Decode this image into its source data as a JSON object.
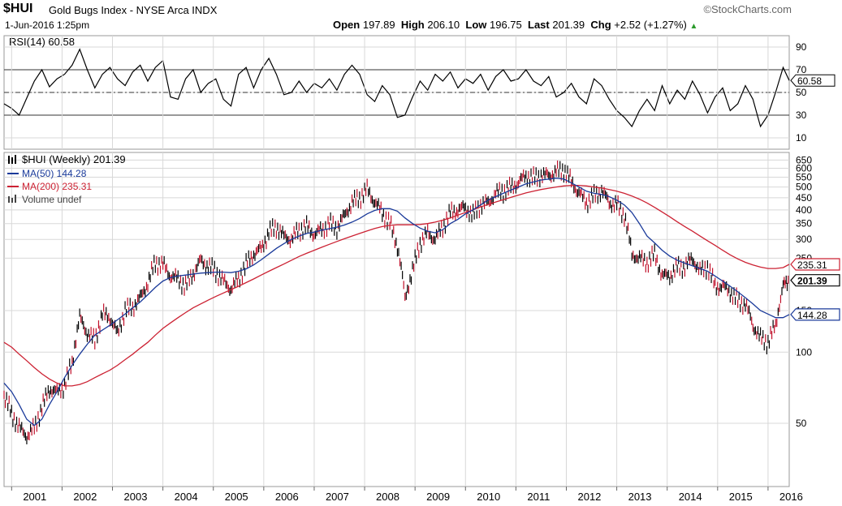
{
  "header": {
    "symbol": "$HUI",
    "name": "Gold Bugs Index - NYSE Arca INDX",
    "brand": "©StockCharts.com",
    "date": "1-Jun-2016 1:25pm",
    "open_label": "Open",
    "open": "197.89",
    "high_label": "High",
    "high": "206.10",
    "low_label": "Low",
    "low": "196.75",
    "last_label": "Last",
    "last": "201.39",
    "chg_label": "Chg",
    "chg": "+2.52 (+1.27%)"
  },
  "colors": {
    "price": "#000000",
    "down": "#c0102a",
    "ma50": "#1a3a9a",
    "ma200": "#cc2233",
    "rsi": "#000000",
    "grid": "#d8d8d8",
    "overbought": "#3a7a3a",
    "oversold": "#a04040"
  },
  "chart_data": [
    {
      "type": "line",
      "panel": "RSI",
      "legend": "RSI(14) 60.58",
      "ylim": [
        0,
        100
      ],
      "y_ticks": [
        10,
        30,
        50,
        70,
        90
      ],
      "reference_lines": [
        30,
        50,
        70
      ],
      "last_value": "60.58",
      "x": [
        2000.85,
        2001.0,
        2001.15,
        2001.3,
        2001.45,
        2001.6,
        2001.75,
        2001.9,
        2002.05,
        2002.2,
        2002.35,
        2002.5,
        2002.65,
        2002.8,
        2002.95,
        2003.1,
        2003.25,
        2003.4,
        2003.55,
        2003.7,
        2003.85,
        2004.0,
        2004.15,
        2004.3,
        2004.45,
        2004.6,
        2004.75,
        2004.9,
        2005.05,
        2005.2,
        2005.35,
        2005.5,
        2005.65,
        2005.8,
        2005.95,
        2006.1,
        2006.25,
        2006.4,
        2006.55,
        2006.7,
        2006.85,
        2007.0,
        2007.15,
        2007.3,
        2007.45,
        2007.6,
        2007.75,
        2007.9,
        2008.05,
        2008.2,
        2008.35,
        2008.5,
        2008.65,
        2008.8,
        2008.95,
        2009.1,
        2009.25,
        2009.4,
        2009.55,
        2009.7,
        2009.85,
        2010.0,
        2010.15,
        2010.3,
        2010.45,
        2010.6,
        2010.75,
        2010.9,
        2011.05,
        2011.2,
        2011.35,
        2011.5,
        2011.65,
        2011.8,
        2011.95,
        2012.1,
        2012.25,
        2012.4,
        2012.55,
        2012.7,
        2012.85,
        2013.0,
        2013.15,
        2013.3,
        2013.45,
        2013.6,
        2013.75,
        2013.9,
        2014.05,
        2014.2,
        2014.35,
        2014.5,
        2014.65,
        2014.8,
        2014.95,
        2015.1,
        2015.25,
        2015.4,
        2015.55,
        2015.7,
        2015.85,
        2016.0,
        2016.15,
        2016.3,
        2016.42
      ],
      "values": [
        40,
        36,
        30,
        45,
        60,
        70,
        55,
        62,
        66,
        74,
        88,
        70,
        54,
        66,
        72,
        62,
        56,
        68,
        74,
        60,
        72,
        78,
        46,
        44,
        62,
        70,
        50,
        58,
        62,
        44,
        38,
        66,
        72,
        54,
        70,
        80,
        66,
        48,
        50,
        60,
        50,
        58,
        54,
        62,
        52,
        66,
        74,
        66,
        48,
        42,
        56,
        48,
        28,
        30,
        46,
        60,
        52,
        66,
        60,
        68,
        54,
        62,
        58,
        66,
        52,
        64,
        70,
        60,
        62,
        70,
        60,
        56,
        64,
        46,
        50,
        58,
        46,
        40,
        62,
        56,
        44,
        34,
        28,
        20,
        34,
        44,
        34,
        56,
        40,
        52,
        44,
        60,
        48,
        32,
        46,
        54,
        34,
        40,
        56,
        44,
        20,
        30,
        50,
        72,
        60.58
      ]
    },
    {
      "type": "line",
      "panel": "Price",
      "scale": "log",
      "title": "$HUI (Weekly) 201.39",
      "ylim": [
        27,
        700
      ],
      "y_ticks": [
        50,
        100,
        150,
        250,
        300,
        350,
        400,
        450,
        500,
        550,
        600,
        650
      ],
      "x_ticks": [
        "2001",
        "2002",
        "2003",
        "2004",
        "2005",
        "2006",
        "2007",
        "2008",
        "2009",
        "2010",
        "2011",
        "2012",
        "2013",
        "2014",
        "2015",
        "2016"
      ],
      "x": [
        2000.85,
        2001.0,
        2001.15,
        2001.3,
        2001.45,
        2001.6,
        2001.75,
        2001.9,
        2002.05,
        2002.2,
        2002.35,
        2002.5,
        2002.65,
        2002.8,
        2002.95,
        2003.1,
        2003.25,
        2003.4,
        2003.55,
        2003.7,
        2003.85,
        2004.0,
        2004.15,
        2004.3,
        2004.45,
        2004.6,
        2004.75,
        2004.9,
        2005.05,
        2005.2,
        2005.35,
        2005.5,
        2005.65,
        2005.8,
        2005.95,
        2006.1,
        2006.25,
        2006.4,
        2006.55,
        2006.7,
        2006.85,
        2007.0,
        2007.15,
        2007.3,
        2007.45,
        2007.6,
        2007.75,
        2007.9,
        2008.05,
        2008.2,
        2008.35,
        2008.5,
        2008.65,
        2008.8,
        2008.95,
        2009.1,
        2009.25,
        2009.4,
        2009.55,
        2009.7,
        2009.85,
        2010.0,
        2010.15,
        2010.3,
        2010.45,
        2010.6,
        2010.75,
        2010.9,
        2011.05,
        2011.2,
        2011.35,
        2011.5,
        2011.65,
        2011.8,
        2011.95,
        2012.1,
        2012.25,
        2012.4,
        2012.55,
        2012.7,
        2012.85,
        2013.0,
        2013.15,
        2013.3,
        2013.45,
        2013.6,
        2013.75,
        2013.9,
        2014.05,
        2014.2,
        2014.35,
        2014.5,
        2014.65,
        2014.8,
        2014.95,
        2015.1,
        2015.25,
        2015.4,
        2015.55,
        2015.7,
        2015.85,
        2016.0,
        2016.15,
        2016.3,
        2016.42
      ],
      "series": [
        {
          "name": "$HUI (Weekly) 201.39",
          "values": [
            65,
            55,
            48,
            44,
            48,
            58,
            70,
            68,
            72,
            90,
            140,
            120,
            112,
            145,
            140,
            120,
            150,
            155,
            170,
            195,
            240,
            235,
            210,
            205,
            190,
            215,
            245,
            230,
            220,
            200,
            185,
            205,
            235,
            260,
            275,
            320,
            340,
            310,
            300,
            330,
            340,
            315,
            330,
            350,
            335,
            380,
            430,
            450,
            490,
            430,
            390,
            350,
            280,
            170,
            220,
            290,
            320,
            300,
            340,
            390,
            400,
            410,
            380,
            420,
            430,
            470,
            480,
            500,
            520,
            560,
            545,
            560,
            560,
            580,
            590,
            530,
            470,
            430,
            460,
            480,
            430,
            420,
            380,
            260,
            250,
            240,
            260,
            210,
            210,
            230,
            230,
            250,
            220,
            230,
            190,
            190,
            180,
            165,
            160,
            130,
            115,
            110,
            130,
            190,
            201.39
          ]
        },
        {
          "name": "MA(50) 144.28",
          "values": [
            74,
            68,
            60,
            52,
            49,
            52,
            60,
            68,
            78,
            88,
            98,
            108,
            118,
            124,
            130,
            137,
            145,
            154,
            163,
            175,
            188,
            200,
            207,
            210,
            212,
            214,
            216,
            217,
            218,
            218,
            217,
            220,
            225,
            234,
            246,
            260,
            275,
            288,
            300,
            310,
            318,
            322,
            328,
            333,
            338,
            345,
            355,
            368,
            385,
            398,
            405,
            405,
            395,
            370,
            350,
            335,
            325,
            320,
            330,
            350,
            365,
            385,
            400,
            420,
            440,
            455,
            470,
            485,
            500,
            515,
            525,
            535,
            540,
            545,
            540,
            520,
            500,
            480,
            470,
            465,
            455,
            440,
            420,
            390,
            350,
            310,
            290,
            270,
            255,
            245,
            238,
            232,
            226,
            220,
            210,
            200,
            190,
            180,
            170,
            160,
            150,
            145,
            140,
            140,
            144.28
          ]
        },
        {
          "name": "MA(200) 235.31",
          "values": [
            110,
            105,
            98,
            92,
            86,
            81,
            77,
            74,
            72,
            72,
            73,
            75,
            78,
            81,
            84,
            88,
            93,
            98,
            104,
            110,
            118,
            126,
            133,
            140,
            147,
            154,
            160,
            166,
            172,
            178,
            184,
            190,
            197,
            204,
            212,
            220,
            228,
            236,
            245,
            254,
            262,
            270,
            278,
            286,
            294,
            302,
            310,
            318,
            326,
            334,
            340,
            344,
            346,
            346,
            346,
            347,
            350,
            355,
            362,
            370,
            380,
            390,
            400,
            412,
            422,
            432,
            442,
            452,
            462,
            472,
            480,
            488,
            494,
            500,
            505,
            508,
            508,
            505,
            500,
            495,
            488,
            480,
            470,
            458,
            444,
            428,
            410,
            392,
            374,
            356,
            340,
            325,
            310,
            296,
            283,
            270,
            258,
            248,
            240,
            234,
            229,
            226,
            226,
            228,
            235.31
          ]
        }
      ],
      "last_value": "201.39",
      "ma50_label": "144.28",
      "ma200_label": "235.31",
      "volume_label": "Volume undef"
    }
  ]
}
